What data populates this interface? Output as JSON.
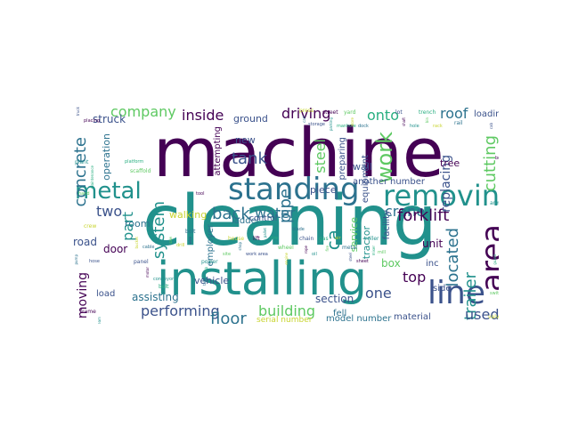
{
  "word_cloud": {
    "palette": {
      "purple": "#440154",
      "indigo": "#3b528b",
      "blue": "#2c728e",
      "teal": "#21918c",
      "green": "#28ae80",
      "lime": "#5ec962",
      "yellow": "#c8d430"
    },
    "words": [
      {
        "text": "machine",
        "color": "#440154"
      },
      {
        "text": "cleaning",
        "color": "#21918c"
      },
      {
        "text": "installing",
        "color": "#21918c"
      },
      {
        "text": "standing",
        "color": "#2c728e"
      },
      {
        "text": "removing",
        "color": "#21918c"
      },
      {
        "text": "area",
        "color": "#440154"
      },
      {
        "text": "line",
        "color": "#3b528b"
      },
      {
        "text": "metal",
        "color": "#21918c"
      },
      {
        "text": "work",
        "color": "#5ec962"
      },
      {
        "text": "company",
        "color": "#5ec962"
      },
      {
        "text": "concrete",
        "color": "#2c728e"
      },
      {
        "text": "inside",
        "color": "#440154"
      },
      {
        "text": "driving",
        "color": "#440154"
      },
      {
        "text": "onto",
        "color": "#28ae80"
      },
      {
        "text": "roof",
        "color": "#2c728e"
      },
      {
        "text": "tank",
        "color": "#3b528b"
      },
      {
        "text": "steel",
        "color": "#5ec962"
      },
      {
        "text": "pipe",
        "color": "#2c728e"
      },
      {
        "text": "crane",
        "color": "#2c728e"
      },
      {
        "text": "forklift",
        "color": "#440154"
      },
      {
        "text": "back",
        "color": "#2c728e"
      },
      {
        "text": "water",
        "color": "#2c728e"
      },
      {
        "text": "two",
        "color": "#3b528b"
      },
      {
        "text": "system",
        "color": "#21918c"
      },
      {
        "text": "part",
        "color": "#21918c"
      },
      {
        "text": "performing",
        "color": "#3b528b"
      },
      {
        "text": "floor",
        "color": "#2c728e"
      },
      {
        "text": "building",
        "color": "#5ec962"
      },
      {
        "text": "located",
        "color": "#2c728e"
      },
      {
        "text": "cutting",
        "color": "#5ec962"
      },
      {
        "text": "replacing",
        "color": "#3b528b"
      },
      {
        "text": "trailer",
        "color": "#21918c"
      },
      {
        "text": "top",
        "color": "#440154"
      },
      {
        "text": "one",
        "color": "#3b528b"
      },
      {
        "text": "used",
        "color": "#3b528b"
      },
      {
        "text": "moving",
        "color": "#440154"
      },
      {
        "text": "ca",
        "color": "#21918c"
      },
      {
        "text": "ground",
        "color": "#3b528b"
      },
      {
        "text": "loading",
        "color": "#3b528b"
      },
      {
        "text": "struck",
        "color": "#3b528b"
      },
      {
        "text": "road",
        "color": "#3b528b"
      },
      {
        "text": "door",
        "color": "#440154"
      },
      {
        "text": "vehicle",
        "color": "#3b528b"
      },
      {
        "text": "assisting",
        "color": "#2c728e"
      },
      {
        "text": "section",
        "color": "#3b528b"
      },
      {
        "text": "box",
        "color": "#5ec962"
      },
      {
        "text": "inc",
        "color": "#3b528b"
      },
      {
        "text": "side",
        "color": "#3b528b"
      },
      {
        "text": "unit",
        "color": "#440154"
      },
      {
        "text": "material",
        "color": "#3b528b"
      },
      {
        "text": "model number",
        "color": "#2c728e"
      },
      {
        "text": "service",
        "color": "#5ec962"
      },
      {
        "text": "tractor",
        "color": "#21918c"
      },
      {
        "text": "piece",
        "color": "#3b528b"
      },
      {
        "text": "another",
        "color": "#3b528b"
      },
      {
        "text": "number",
        "color": "#3b528b"
      },
      {
        "text": "equipment",
        "color": "#3b528b"
      },
      {
        "text": "facility",
        "color": "#3b528b"
      },
      {
        "text": "wall",
        "color": "#3b528b"
      },
      {
        "text": "tree",
        "color": "#440154"
      },
      {
        "text": "operation",
        "color": "#2c728e"
      },
      {
        "text": "employer",
        "color": "#2c728e"
      },
      {
        "text": "ladder",
        "color": "#2c728e"
      },
      {
        "text": "new",
        "color": "#3b528b"
      },
      {
        "text": "attempting",
        "color": "#440154"
      },
      {
        "text": "walking",
        "color": "#c8d430"
      },
      {
        "text": "room",
        "color": "#2c728e"
      },
      {
        "text": "fell",
        "color": "#2c728e"
      },
      {
        "text": "preparing",
        "color": "#3b528b"
      },
      {
        "text": "serial number",
        "color": "#c8d430"
      },
      {
        "text": "load",
        "color": "#3b528b"
      },
      {
        "text": "control",
        "color": "#3b528b"
      }
    ],
    "small_words": [
      "truck",
      "placing",
      "plant",
      "maintenance",
      "hand",
      "crew",
      "pump",
      "hose",
      "frame",
      "beam",
      "platform",
      "scaffold",
      "bucket",
      "cable",
      "panel",
      "motor",
      "conveyor",
      "belt",
      "saw",
      "drill",
      "bolt",
      "wire",
      "tool",
      "power",
      "job",
      "site",
      "house",
      "shop",
      "work area",
      "lift",
      "pallet",
      "tire",
      "wheel",
      "engine",
      "blade",
      "chain",
      "rope",
      "oil",
      "gas",
      "fire",
      "air",
      "metal",
      "steel",
      "sheet",
      "roller",
      "mixer",
      "mill",
      "press",
      "cart",
      "storage",
      "street",
      "parking",
      "manhole",
      "yard",
      "store",
      "dock",
      "lot",
      "shaft",
      "hole",
      "trench",
      "bin",
      "rack",
      "rail",
      "cab",
      "boom",
      "arm",
      "guard",
      "switch",
      "valve",
      "tape"
    ]
  }
}
